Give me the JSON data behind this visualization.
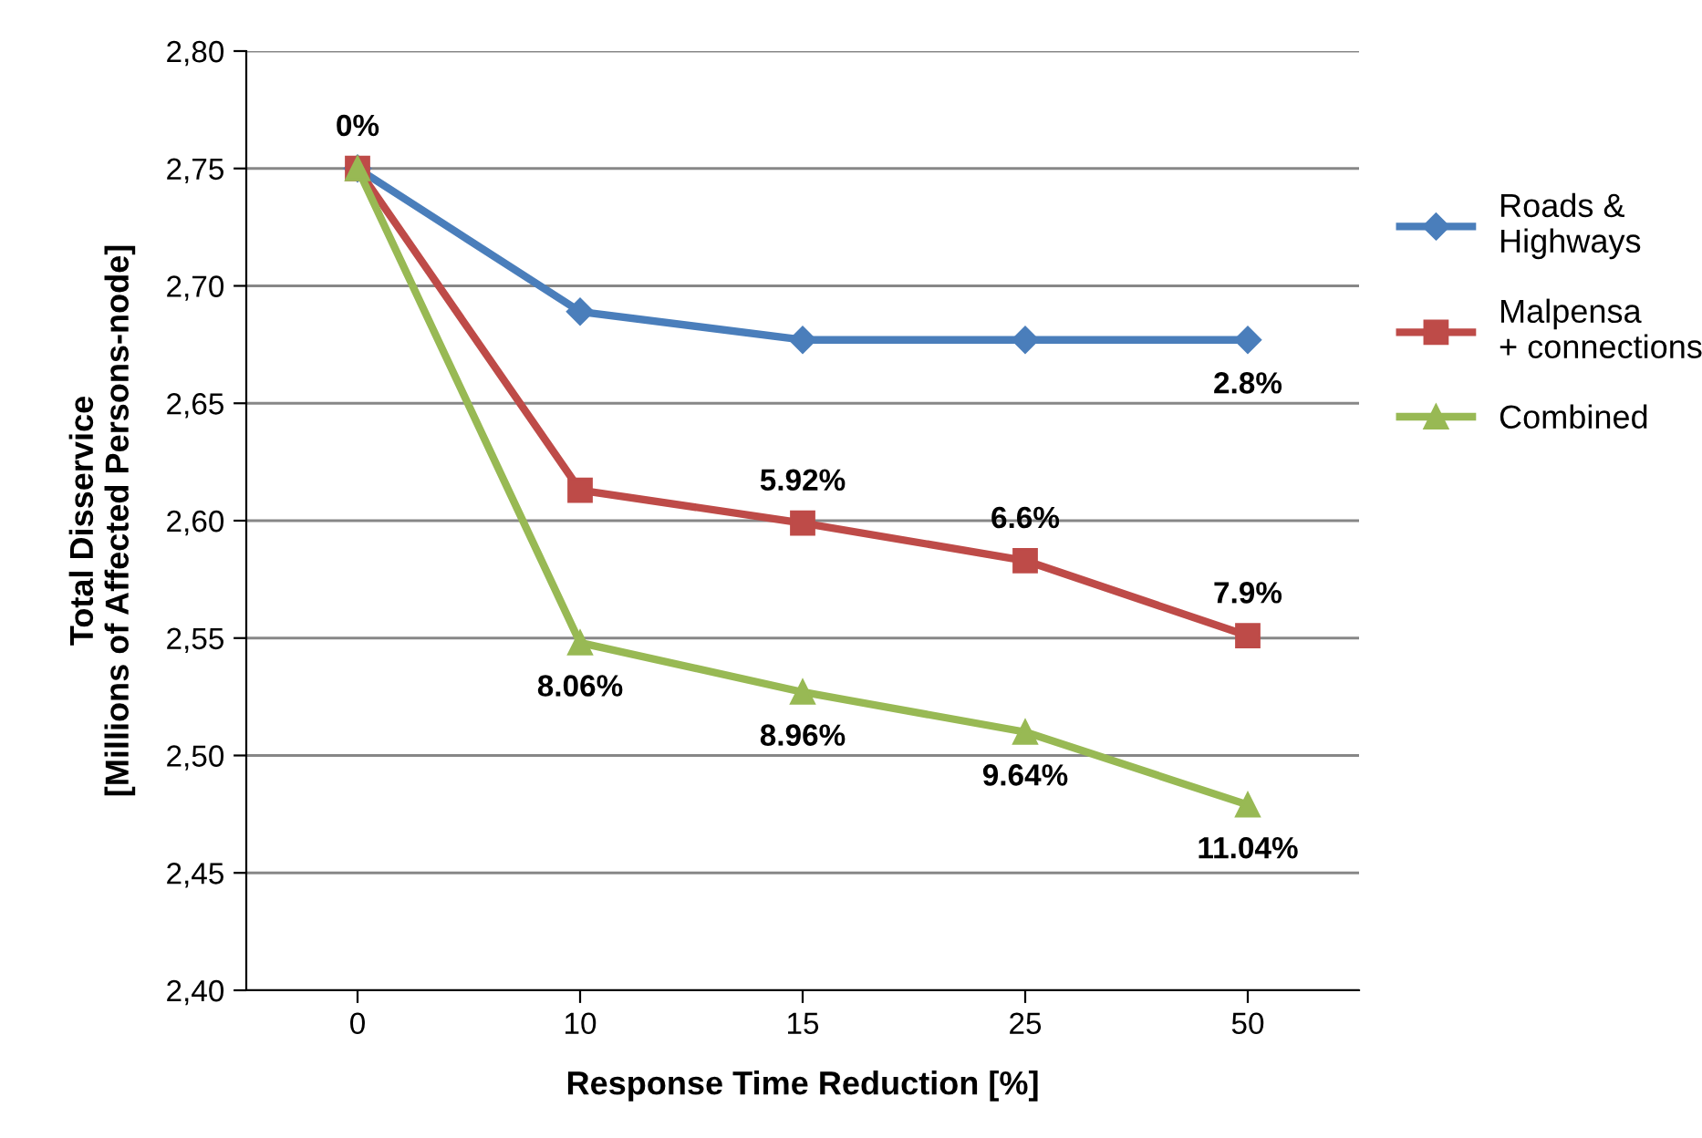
{
  "chart_data": {
    "type": "line",
    "xlabel": "Response Time Reduction [%]",
    "ylabel": "Total Disservice\n[Millions of Affected Persons-node]",
    "categories": [
      "0",
      "10",
      "15",
      "25",
      "50"
    ],
    "series": [
      {
        "name": "Roads &\nHighways",
        "color": "#4a7ebb",
        "marker": "diamond",
        "values": [
          2.75,
          2.689,
          2.677,
          2.677,
          2.677
        ]
      },
      {
        "name": "Malpensa\n+ connections",
        "color": "#be4b48",
        "marker": "square",
        "values": [
          2.75,
          2.613,
          2.599,
          2.583,
          2.551
        ]
      },
      {
        "name": "Combined",
        "color": "#98b954",
        "marker": "triangle",
        "values": [
          2.75,
          2.548,
          2.527,
          2.51,
          2.479
        ]
      }
    ],
    "annotations": [
      {
        "text": "0%",
        "x": "0",
        "y": 2.75
      },
      {
        "text": "2.8%",
        "x": "50",
        "y": 2.677
      },
      {
        "text": "5.92%",
        "x": "15",
        "y": 2.599
      },
      {
        "text": "6.6%",
        "x": "25",
        "y": 2.583
      },
      {
        "text": "7.9%",
        "x": "50",
        "y": 2.551
      },
      {
        "text": "8.06%",
        "x": "10",
        "y": 2.548
      },
      {
        "text": "8.96%",
        "x": "15",
        "y": 2.527
      },
      {
        "text": "9.64%",
        "x": "25",
        "y": 2.51
      },
      {
        "text": "11.04%",
        "x": "50",
        "y": 2.479
      }
    ],
    "ylim": [
      2.4,
      2.8
    ],
    "yticks": [
      {
        "value": 2.4,
        "label": "2,40"
      },
      {
        "value": 2.45,
        "label": "2,45"
      },
      {
        "value": 2.5,
        "label": "2,50"
      },
      {
        "value": 2.55,
        "label": "2,55"
      },
      {
        "value": 2.6,
        "label": "2,60"
      },
      {
        "value": 2.65,
        "label": "2,65"
      },
      {
        "value": 2.7,
        "label": "2,70"
      },
      {
        "value": 2.75,
        "label": "2,75"
      },
      {
        "value": 2.8,
        "label": "2,80"
      }
    ],
    "grid": "y",
    "legend": "right",
    "line_style": "solid"
  }
}
